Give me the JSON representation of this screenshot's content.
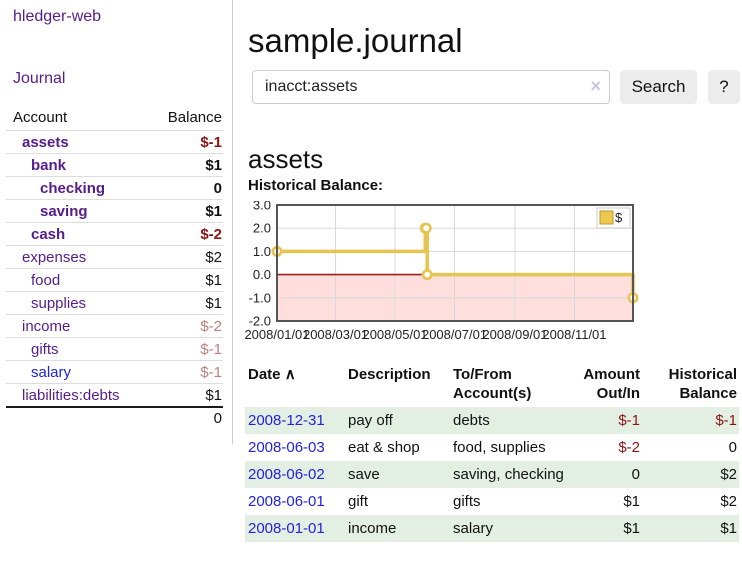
{
  "app": {
    "brand": "hledger-web"
  },
  "sidebar": {
    "journal_link": "Journal",
    "accounts_table": {
      "col_account": "Account",
      "col_balance": "Balance",
      "rows": [
        {
          "name": "assets",
          "balance": "$-1",
          "depth": 1,
          "bold": true,
          "balance_style": "neg-strong",
          "name_style": ""
        },
        {
          "name": "bank",
          "balance": "$1",
          "depth": 2,
          "bold": true,
          "balance_style": "",
          "name_style": ""
        },
        {
          "name": "checking",
          "balance": "0",
          "depth": 3,
          "bold": true,
          "balance_style": "",
          "name_style": ""
        },
        {
          "name": "saving",
          "balance": "$1",
          "depth": 3,
          "bold": true,
          "balance_style": "",
          "name_style": ""
        },
        {
          "name": "cash",
          "balance": "$-2",
          "depth": 2,
          "bold": true,
          "balance_style": "neg-strong",
          "name_style": ""
        },
        {
          "name": "expenses",
          "balance": "$2",
          "depth": 1,
          "bold": false,
          "balance_style": "",
          "name_style": ""
        },
        {
          "name": "food",
          "balance": "$1",
          "depth": 2,
          "bold": false,
          "balance_style": "",
          "name_style": ""
        },
        {
          "name": "supplies",
          "balance": "$1",
          "depth": 2,
          "bold": false,
          "balance_style": "",
          "name_style": ""
        },
        {
          "name": "income",
          "balance": "$-2",
          "depth": 1,
          "bold": false,
          "balance_style": "neg-soft",
          "name_style": ""
        },
        {
          "name": "gifts",
          "balance": "$-1",
          "depth": 2,
          "bold": false,
          "balance_style": "neg-soft",
          "name_style": ""
        },
        {
          "name": "salary",
          "balance": "$-1",
          "depth": 2,
          "bold": false,
          "balance_style": "neg-soft",
          "name_style": "blue"
        },
        {
          "name": "liabilities:debts",
          "balance": "$1",
          "depth": 1,
          "bold": false,
          "balance_style": "",
          "name_style": ""
        }
      ],
      "total": "0"
    }
  },
  "header": {
    "title": "sample.journal"
  },
  "search": {
    "value": "inacct:assets",
    "clear_icon": "×",
    "button_label": "Search",
    "help_label": "?"
  },
  "account_page": {
    "heading": "assets",
    "chart_title": "Historical Balance:"
  },
  "chart_data": {
    "type": "line",
    "title": "Historical Balance",
    "step": true,
    "x_range": [
      "2008-01-01",
      "2008-12-31"
    ],
    "ylim": [
      -2,
      3
    ],
    "y_tick_step": 1,
    "grid": true,
    "legend": {
      "label": "$",
      "position": "top-right"
    },
    "series": [
      {
        "name": "$",
        "points": [
          {
            "date": "2008-01-01",
            "value": 1
          },
          {
            "date": "2008-06-01",
            "value": 2
          },
          {
            "date": "2008-06-02",
            "value": 2
          },
          {
            "date": "2008-06-03",
            "value": 0
          },
          {
            "date": "2008-12-31",
            "value": -1
          }
        ]
      }
    ],
    "x_ticks": [
      {
        "date": "2008-01-01",
        "label": "2008/01/01"
      },
      {
        "date": "2008-03-01",
        "label": "2008/03/01"
      },
      {
        "date": "2008-05-01",
        "label": "2008/05/01"
      },
      {
        "date": "2008-07-01",
        "label": "2008/07/01"
      },
      {
        "date": "2008-09-01",
        "label": "2008/09/01"
      },
      {
        "date": "2008-11-01",
        "label": "2008/11/01"
      }
    ],
    "colors": {
      "line": "#e7c44f",
      "marker_fill": "#ffffff",
      "grid": "#d9d9d9",
      "border": "#555555",
      "negative_fill": "#ffdede",
      "zero_line": "#9f1d1d",
      "legend_swatch": "#edc84d",
      "legend_swatch_border": "#b89a35"
    }
  },
  "transactions": {
    "columns": {
      "date": "Date",
      "sort_icon": "∧",
      "description": "Description",
      "accounts": [
        "To/From",
        "Account(s)"
      ],
      "amount": [
        "Amount",
        "Out/In"
      ],
      "balance": [
        "Historical",
        "Balance"
      ]
    },
    "rows": [
      {
        "date": "2008-12-31",
        "description": "pay off",
        "accounts": "debts",
        "amount": "$-1",
        "amount_neg": true,
        "balance": "$-1",
        "balance_neg": true,
        "shaded": true
      },
      {
        "date": "2008-06-03",
        "description": "eat & shop",
        "accounts": "food, supplies",
        "amount": "$-2",
        "amount_neg": true,
        "balance": "0",
        "balance_neg": false,
        "shaded": false
      },
      {
        "date": "2008-06-02",
        "description": "save",
        "accounts": "saving, checking",
        "amount": "0",
        "amount_neg": false,
        "balance": "$2",
        "balance_neg": false,
        "shaded": true
      },
      {
        "date": "2008-06-01",
        "description": "gift",
        "accounts": "gifts",
        "amount": "$1",
        "amount_neg": false,
        "balance": "$2",
        "balance_neg": false,
        "shaded": false
      },
      {
        "date": "2008-01-01",
        "description": "income",
        "accounts": "salary",
        "amount": "$1",
        "amount_neg": false,
        "balance": "$1",
        "balance_neg": false,
        "shaded": true
      }
    ]
  },
  "colors": {
    "link_purple": "#571c8b",
    "link_blue": "#2222dd",
    "negative_strong": "#8e1414",
    "negative_soft": "#c27d7d",
    "row_green": "#e4efe4",
    "button_bg": "#ececec"
  }
}
